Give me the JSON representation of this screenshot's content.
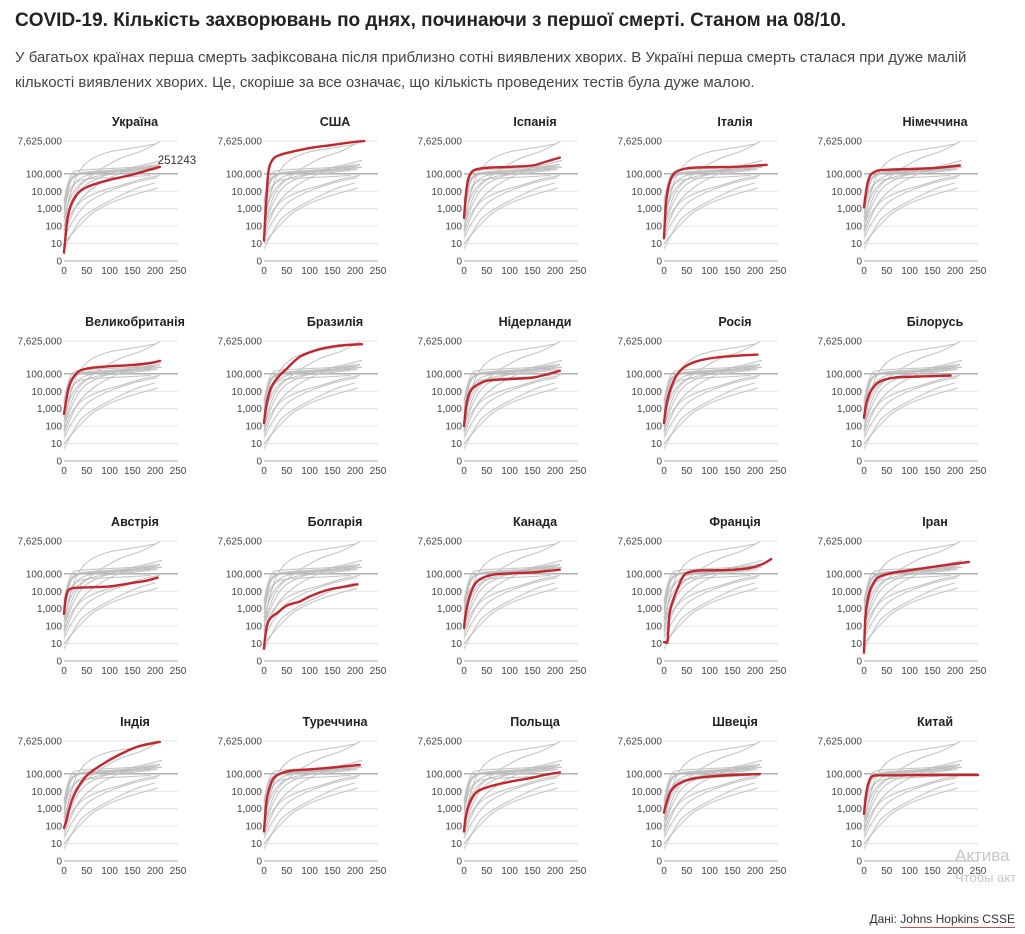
{
  "header": {
    "title": "COVID-19. Кількість захворювань по днях, починаючи з першої смерті. Станом на 08/10.",
    "subtitle": "У багатьох країнах перша смерть зафіксована після приблизно сотні виявлених хворих. В Україні перша смерть сталася при дуже малій кількості виявлених хворих. Це, скоріше за все означає, що кількість проведених тестів була дуже малою."
  },
  "footer": {
    "prefix": "Дані:",
    "source": "Johns Hopkins CSSE"
  },
  "watermark": {
    "line1": "Актива",
    "line2": "Чтобы акт"
  },
  "colors": {
    "highlight": "#c1272d",
    "context": "#bbbbbb",
    "grid": "#dddddd",
    "hundredk": "#aaaaaa"
  },
  "chart_data": {
    "type": "line",
    "layout": "small-multiples 5x4",
    "yscale": "log",
    "xlabel": "",
    "ylabel": "",
    "y_ticks": [
      {
        "value": 7625000,
        "label": "7,625,000"
      },
      {
        "value": 100000,
        "label": "100,000"
      },
      {
        "value": 10000,
        "label": "10,000"
      },
      {
        "value": 1000,
        "label": "1,000"
      },
      {
        "value": 100,
        "label": "100"
      },
      {
        "value": 10,
        "label": "10"
      },
      {
        "value": 0,
        "label": "0"
      }
    ],
    "x_ticks": [
      0,
      50,
      100,
      150,
      200,
      250
    ],
    "xlim": [
      0,
      250
    ],
    "background_series": [
      {
        "x": [
          0,
          10,
          20,
          35,
          60,
          100,
          150,
          210
        ],
        "y": [
          3000,
          40000,
          120000,
          160000,
          180000,
          200000,
          230000,
          280000
        ]
      },
      {
        "x": [
          0,
          10,
          25,
          50,
          100,
          150,
          205
        ],
        "y": [
          2000,
          30000,
          90000,
          130000,
          160000,
          190000,
          220000
        ]
      },
      {
        "x": [
          0,
          10,
          20,
          40,
          80,
          130,
          200
        ],
        "y": [
          1000,
          20000,
          70000,
          110000,
          130000,
          160000,
          260000
        ]
      },
      {
        "x": [
          0,
          8,
          18,
          40,
          80,
          140,
          215
        ],
        "y": [
          800,
          8000,
          50000,
          100000,
          120000,
          135000,
          240000
        ]
      },
      {
        "x": [
          0,
          15,
          35,
          70,
          120,
          170,
          210
        ],
        "y": [
          100,
          2000,
          20000,
          120000,
          700000,
          2000000,
          7000000
        ]
      },
      {
        "x": [
          0,
          15,
          30,
          60,
          100,
          150,
          200
        ],
        "y": [
          200,
          8000,
          100000,
          700000,
          1800000,
          3000000,
          5000000
        ]
      },
      {
        "x": [
          0,
          10,
          25,
          50,
          100,
          150,
          190
        ],
        "y": [
          500,
          8000,
          30000,
          50000,
          60000,
          70000,
          80000
        ]
      },
      {
        "x": [
          0,
          12,
          30,
          60,
          100,
          150,
          205
        ],
        "y": [
          300,
          3000,
          20000,
          60000,
          90000,
          120000,
          180000
        ]
      },
      {
        "x": [
          0,
          15,
          40,
          80,
          120,
          170,
          210
        ],
        "y": [
          50,
          500,
          3000,
          10000,
          20000,
          50000,
          80000
        ]
      },
      {
        "x": [
          0,
          15,
          35,
          70,
          120,
          170,
          210
        ],
        "y": [
          30,
          300,
          3000,
          20000,
          100000,
          250000,
          350000
        ]
      },
      {
        "x": [
          0,
          20,
          50,
          90,
          130,
          170,
          205
        ],
        "y": [
          20,
          200,
          2000,
          8000,
          20000,
          40000,
          60000
        ]
      },
      {
        "x": [
          0,
          25,
          60,
          100,
          140,
          180,
          205
        ],
        "y": [
          10,
          60,
          500,
          2000,
          5000,
          10000,
          15000
        ]
      },
      {
        "x": [
          0,
          20,
          45,
          90,
          140,
          190,
          215
        ],
        "y": [
          100,
          2000,
          20000,
          80000,
          200000,
          400000,
          600000
        ]
      },
      {
        "x": [
          0,
          10,
          25,
          50,
          90,
          140,
          190
        ],
        "y": [
          50,
          3000,
          30000,
          80000,
          120000,
          150000,
          180000
        ]
      },
      {
        "x": [
          0,
          20,
          40,
          80,
          120,
          160,
          200
        ],
        "y": [
          5,
          50,
          300,
          1500,
          5000,
          15000,
          30000
        ]
      }
    ],
    "panels": [
      {
        "title": "Україна",
        "annotation": "251243",
        "x": [
          0,
          3,
          7,
          12,
          20,
          35,
          60,
          100,
          150,
          210
        ],
        "y": [
          3,
          20,
          200,
          900,
          3000,
          10000,
          22000,
          45000,
          90000,
          251243
        ]
      },
      {
        "title": "США",
        "x": [
          0,
          5,
          10,
          20,
          35,
          60,
          100,
          150,
          200,
          220
        ],
        "y": [
          15,
          3000,
          150000,
          700000,
          1200000,
          1800000,
          3000000,
          4500000,
          6900000,
          7500000
        ]
      },
      {
        "title": "Іспанія",
        "x": [
          0,
          5,
          10,
          20,
          35,
          60,
          100,
          150,
          180,
          210
        ],
        "y": [
          300,
          10000,
          60000,
          150000,
          200000,
          230000,
          250000,
          300000,
          500000,
          850000
        ]
      },
      {
        "title": "Італія",
        "x": [
          0,
          4,
          8,
          15,
          25,
          40,
          60,
          100,
          150,
          200,
          225
        ],
        "y": [
          20,
          1500,
          10000,
          50000,
          120000,
          180000,
          220000,
          240000,
          250000,
          290000,
          330000
        ]
      },
      {
        "title": "Німеччина",
        "x": [
          0,
          3,
          8,
          15,
          30,
          50,
          100,
          150,
          200,
          210
        ],
        "y": [
          1200,
          5000,
          30000,
          90000,
          150000,
          170000,
          190000,
          210000,
          280000,
          300000
        ]
      },
      {
        "title": "Великобританія",
        "x": [
          0,
          5,
          10,
          20,
          35,
          60,
          100,
          150,
          190,
          210
        ],
        "y": [
          500,
          3000,
          15000,
          60000,
          150000,
          220000,
          270000,
          320000,
          420000,
          550000
        ]
      },
      {
        "title": "Бразилія",
        "x": [
          0,
          5,
          15,
          30,
          50,
          80,
          120,
          160,
          200,
          215
        ],
        "y": [
          150,
          1500,
          15000,
          60000,
          200000,
          1000000,
          2500000,
          4000000,
          4800000,
          5000000
        ]
      },
      {
        "title": "Нідерланди",
        "x": [
          0,
          5,
          12,
          25,
          50,
          100,
          150,
          180,
          210
        ],
        "y": [
          100,
          1500,
          8000,
          20000,
          40000,
          50000,
          60000,
          90000,
          150000
        ]
      },
      {
        "title": "Росія",
        "x": [
          0,
          5,
          15,
          30,
          50,
          80,
          120,
          160,
          200,
          205
        ],
        "y": [
          150,
          1500,
          15000,
          100000,
          300000,
          600000,
          900000,
          1100000,
          1250000,
          1260000
        ]
      },
      {
        "title": "Білорусь",
        "x": [
          0,
          5,
          15,
          30,
          50,
          80,
          120,
          160,
          190
        ],
        "y": [
          300,
          2000,
          10000,
          30000,
          50000,
          65000,
          70000,
          75000,
          80000
        ]
      },
      {
        "title": "Австрія",
        "x": [
          0,
          3,
          8,
          15,
          30,
          60,
          100,
          150,
          180,
          205
        ],
        "y": [
          500,
          3000,
          10000,
          14000,
          16000,
          17000,
          19000,
          30000,
          40000,
          60000
        ]
      },
      {
        "title": "Болгарія",
        "x": [
          0,
          3,
          8,
          15,
          30,
          50,
          80,
          100,
          140,
          170,
          205
        ],
        "y": [
          5,
          30,
          150,
          300,
          600,
          1500,
          2700,
          5000,
          12000,
          17000,
          25000
        ]
      },
      {
        "title": "Канада",
        "x": [
          0,
          5,
          15,
          30,
          60,
          100,
          150,
          190,
          210
        ],
        "y": [
          80,
          800,
          8000,
          40000,
          85000,
          105000,
          120000,
          150000,
          175000
        ]
      },
      {
        "title": "Франція",
        "x": [
          0,
          5,
          8,
          12,
          20,
          30,
          45,
          70,
          100,
          150,
          190,
          215,
          235
        ],
        "y": [
          12,
          12,
          15,
          500,
          3000,
          15000,
          90000,
          150000,
          160000,
          170000,
          220000,
          350000,
          700000
        ]
      },
      {
        "title": "Іран",
        "x": [
          0,
          3,
          8,
          15,
          30,
          60,
          100,
          150,
          190,
          230
        ],
        "y": [
          3,
          300,
          3000,
          15000,
          60000,
          110000,
          160000,
          250000,
          350000,
          480000
        ]
      },
      {
        "title": "Індія",
        "x": [
          0,
          5,
          15,
          30,
          50,
          80,
          120,
          160,
          190,
          210
        ],
        "y": [
          80,
          200,
          2000,
          15000,
          80000,
          300000,
          1200000,
          3500000,
          5500000,
          6800000
        ]
      },
      {
        "title": "Туреччина",
        "x": [
          0,
          5,
          10,
          20,
          35,
          60,
          100,
          150,
          200,
          210
        ],
        "y": [
          50,
          2000,
          10000,
          50000,
          100000,
          150000,
          180000,
          230000,
          310000,
          320000
        ]
      },
      {
        "title": "Польща",
        "x": [
          0,
          5,
          15,
          30,
          60,
          100,
          150,
          180,
          210
        ],
        "y": [
          50,
          500,
          3000,
          10000,
          20000,
          35000,
          60000,
          90000,
          120000
        ]
      },
      {
        "title": "Швеція",
        "x": [
          0,
          5,
          15,
          30,
          60,
          100,
          150,
          200,
          210
        ],
        "y": [
          600,
          2000,
          10000,
          25000,
          50000,
          70000,
          85000,
          95000,
          98000
        ]
      },
      {
        "title": "Китай",
        "x": [
          0,
          3,
          8,
          15,
          25,
          50,
          100,
          150,
          200,
          250
        ],
        "y": [
          500,
          3000,
          20000,
          60000,
          80000,
          82000,
          83000,
          84000,
          85000,
          86000
        ]
      }
    ]
  }
}
